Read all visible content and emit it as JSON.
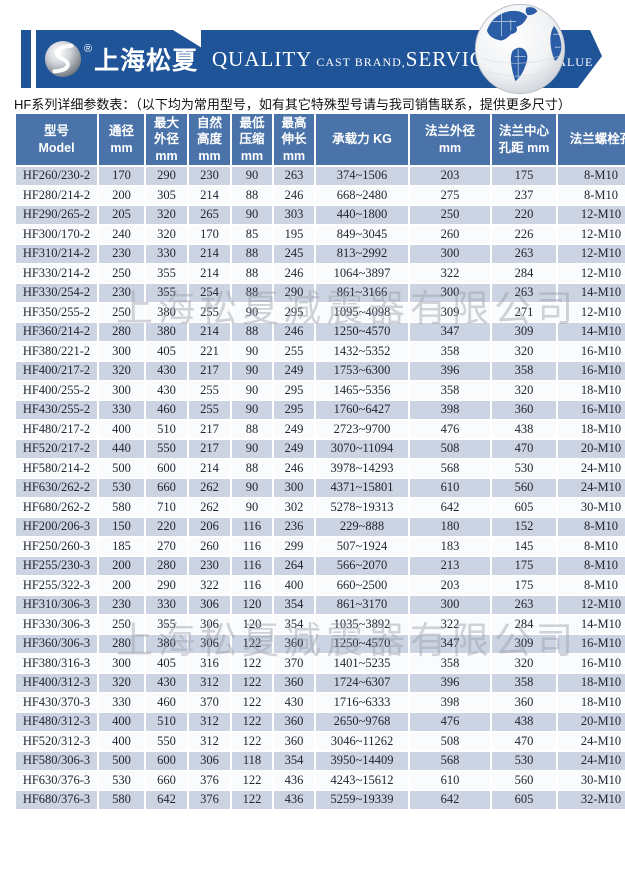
{
  "header": {
    "brand_name": "上海松夏",
    "registered_mark": "®",
    "slogan": {
      "quality": "QUALITY",
      "cast_brand": " CAST BRAND,",
      "service": "SERVICE",
      "creat_value": " CREAT VALUE"
    }
  },
  "subtitle": "HF系列详细参数表：（以下均为常用型号，如有其它特殊型号请与我司销售联系，提供更多尺寸）",
  "watermark": "上海松夏减震器有限公司",
  "colors": {
    "banner_blue": "#1f5499",
    "table_header_blue": "#4a73a9",
    "row_odd": "#ccd3e2",
    "row_even": "#fafbfd",
    "watermark_gray": "#9aa0ac"
  },
  "table": {
    "columns": [
      {
        "lines": [
          "型号",
          "Model"
        ]
      },
      {
        "lines": [
          "通径",
          "mm"
        ]
      },
      {
        "lines": [
          "最大",
          "外径",
          "mm"
        ]
      },
      {
        "lines": [
          "自然",
          "高度",
          "mm"
        ]
      },
      {
        "lines": [
          "最低",
          "压缩",
          "mm"
        ]
      },
      {
        "lines": [
          "最高",
          "伸长",
          "mm"
        ]
      },
      {
        "lines": [
          "承载力 KG"
        ]
      },
      {
        "lines": [
          "法兰外径",
          "mm"
        ]
      },
      {
        "lines": [
          "法兰中心",
          "孔距 mm"
        ]
      },
      {
        "lines": [
          "法兰螺栓孔"
        ]
      }
    ],
    "rows": [
      [
        "HF260/230-2",
        "170",
        "290",
        "230",
        "90",
        "263",
        "374~1506",
        "203",
        "175",
        "8-M10"
      ],
      [
        "HF280/214-2",
        "200",
        "305",
        "214",
        "88",
        "246",
        "668~2480",
        "275",
        "237",
        "8-M10"
      ],
      [
        "HF290/265-2",
        "205",
        "320",
        "265",
        "90",
        "303",
        "440~1800",
        "250",
        "220",
        "12-M10"
      ],
      [
        "HF300/170-2",
        "240",
        "320",
        "170",
        "85",
        "195",
        "849~3045",
        "260",
        "226",
        "12-M10"
      ],
      [
        "HF310/214-2",
        "230",
        "330",
        "214",
        "88",
        "245",
        "813~2992",
        "300",
        "263",
        "12-M10"
      ],
      [
        "HF330/214-2",
        "250",
        "355",
        "214",
        "88",
        "246",
        "1064~3897",
        "322",
        "284",
        "12-M10"
      ],
      [
        "HF330/254-2",
        "230",
        "355",
        "254",
        "88",
        "290",
        "861~3166",
        "300",
        "263",
        "14-M10"
      ],
      [
        "HF350/255-2",
        "250",
        "380",
        "255",
        "90",
        "295",
        "1095~4098",
        "309",
        "271",
        "12-M10"
      ],
      [
        "HF360/214-2",
        "280",
        "380",
        "214",
        "88",
        "246",
        "1250~4570",
        "347",
        "309",
        "14-M10"
      ],
      [
        "HF380/221-2",
        "300",
        "405",
        "221",
        "90",
        "255",
        "1432~5352",
        "358",
        "320",
        "16-M10"
      ],
      [
        "HF400/217-2",
        "320",
        "430",
        "217",
        "90",
        "249",
        "1753~6300",
        "396",
        "358",
        "16-M10"
      ],
      [
        "HF400/255-2",
        "300",
        "430",
        "255",
        "90",
        "295",
        "1465~5356",
        "358",
        "320",
        "18-M10"
      ],
      [
        "HF430/255-2",
        "330",
        "460",
        "255",
        "90",
        "295",
        "1760~6427",
        "398",
        "360",
        "16-M10"
      ],
      [
        "HF480/217-2",
        "400",
        "510",
        "217",
        "88",
        "249",
        "2723~9700",
        "476",
        "438",
        "18-M10"
      ],
      [
        "HF520/217-2",
        "440",
        "550",
        "217",
        "90",
        "249",
        "3070~11094",
        "508",
        "470",
        "20-M10"
      ],
      [
        "HF580/214-2",
        "500",
        "600",
        "214",
        "88",
        "246",
        "3978~14293",
        "568",
        "530",
        "24-M10"
      ],
      [
        "HF630/262-2",
        "530",
        "660",
        "262",
        "90",
        "300",
        "4371~15801",
        "610",
        "560",
        "24-M10"
      ],
      [
        "HF680/262-2",
        "580",
        "710",
        "262",
        "90",
        "302",
        "5278~19313",
        "642",
        "605",
        "30-M10"
      ],
      [
        "HF200/206-3",
        "150",
        "220",
        "206",
        "116",
        "236",
        "229~888",
        "180",
        "152",
        "8-M10"
      ],
      [
        "HF250/260-3",
        "185",
        "270",
        "260",
        "116",
        "299",
        "507~1924",
        "183",
        "145",
        "8-M10"
      ],
      [
        "HF255/230-3",
        "200",
        "280",
        "230",
        "116",
        "264",
        "566~2070",
        "213",
        "175",
        "8-M10"
      ],
      [
        "HF255/322-3",
        "200",
        "290",
        "322",
        "116",
        "400",
        "660~2500",
        "203",
        "175",
        "8-M10"
      ],
      [
        "HF310/306-3",
        "230",
        "330",
        "306",
        "120",
        "354",
        "861~3170",
        "300",
        "263",
        "12-M10"
      ],
      [
        "HF330/306-3",
        "250",
        "355",
        "306",
        "120",
        "354",
        "1035~3892",
        "322",
        "284",
        "14-M10"
      ],
      [
        "HF360/306-3",
        "280",
        "380",
        "306",
        "122",
        "360",
        "1250~4570",
        "347",
        "309",
        "16-M10"
      ],
      [
        "HF380/316-3",
        "300",
        "405",
        "316",
        "122",
        "370",
        "1401~5235",
        "358",
        "320",
        "16-M10"
      ],
      [
        "HF400/312-3",
        "320",
        "430",
        "312",
        "122",
        "360",
        "1724~6307",
        "396",
        "358",
        "18-M10"
      ],
      [
        "HF430/370-3",
        "330",
        "460",
        "370",
        "122",
        "430",
        "1716~6333",
        "398",
        "360",
        "18-M10"
      ],
      [
        "HF480/312-3",
        "400",
        "510",
        "312",
        "122",
        "360",
        "2650~9768",
        "476",
        "438",
        "20-M10"
      ],
      [
        "HF520/312-3",
        "400",
        "550",
        "312",
        "122",
        "360",
        "3046~11262",
        "508",
        "470",
        "24-M10"
      ],
      [
        "HF580/306-3",
        "500",
        "600",
        "306",
        "118",
        "354",
        "3950~14409",
        "568",
        "530",
        "24-M10"
      ],
      [
        "HF630/376-3",
        "530",
        "660",
        "376",
        "122",
        "436",
        "4243~15612",
        "610",
        "560",
        "30-M10"
      ],
      [
        "HF680/376-3",
        "580",
        "642",
        "376",
        "122",
        "436",
        "5259~19339",
        "642",
        "605",
        "32-M10"
      ]
    ]
  }
}
